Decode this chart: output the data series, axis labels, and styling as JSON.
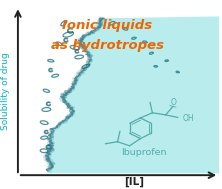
{
  "ylabel": "Solubility of drug",
  "xlabel": "[IL]",
  "ylabel_color": "#00b8b8",
  "xlabel_color": "#222222",
  "text_main_line1": "Ionic liquids",
  "text_main_line2": "as hydrotropes",
  "text_color": "#ee6600",
  "text_fontsize": 9.5,
  "ibuprofen_label": "Ibuprofen",
  "ibuprofen_color": "#55aaaa",
  "wave_fill_color": "#adeaea",
  "wave_fill_alpha": 0.85,
  "splash_color": "#1a6a7a",
  "background_color": "#ffffff",
  "axis_color": "#222222",
  "figsize": [
    2.22,
    1.89
  ],
  "dpi": 100
}
